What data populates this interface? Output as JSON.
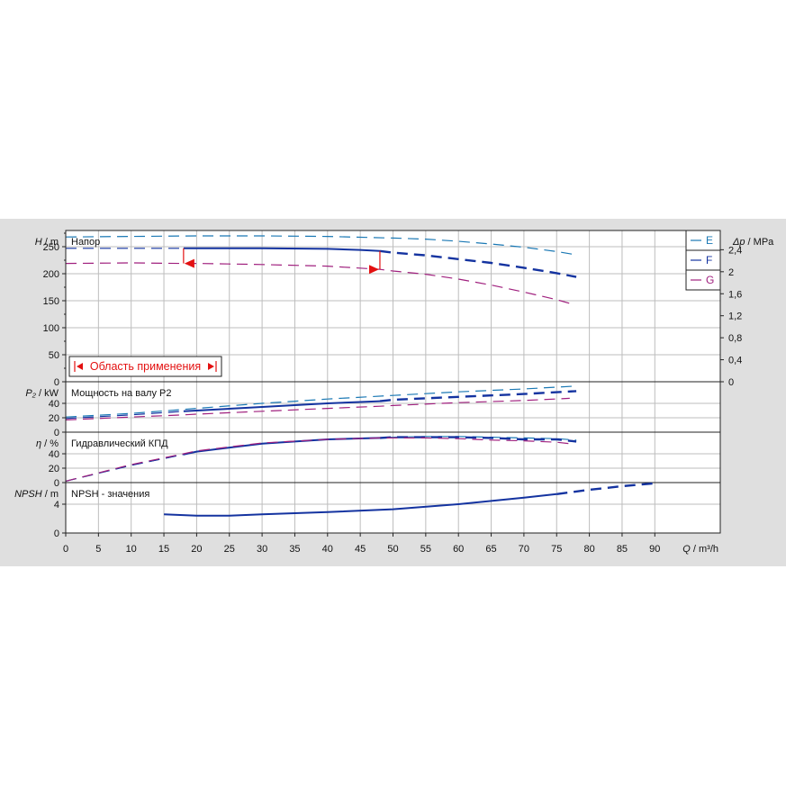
{
  "colors": {
    "E": "#1a78b4",
    "F": "#1433a0",
    "G": "#a0207e",
    "application_marker": "#e31010",
    "grid": "#bdbdbd",
    "panel_bg": "#dfdfdf",
    "plot_bg": "#ffffff"
  },
  "chart_data": {
    "type": "line",
    "x_axis": {
      "label_var": "Q",
      "label_unit": "m³/h",
      "range": [
        0,
        100
      ],
      "ticks": [
        0,
        5,
        10,
        15,
        20,
        25,
        30,
        35,
        40,
        45,
        50,
        55,
        60,
        65,
        70,
        75,
        80,
        85,
        90
      ]
    },
    "panels": [
      {
        "id": "head",
        "title": "Напор",
        "ylabel_var": "H",
        "ylabel_unit": "m",
        "ylim": [
          0,
          280
        ],
        "yticks": [
          0,
          50,
          100,
          150,
          200,
          250
        ],
        "secondary_axis": {
          "label_var": "Δp",
          "label_unit": "MPa",
          "range": [
            0,
            2.75
          ],
          "ticks": [
            0,
            0.4,
            0.8,
            1.2,
            1.6,
            2,
            2.4
          ],
          "tick_labels": [
            "0",
            "0,4",
            "0,8",
            "1,2",
            "1,6",
            "2",
            "2,4"
          ]
        },
        "annotation": "Область применения",
        "application_range": [
          18,
          48
        ],
        "series": [
          {
            "name": "E",
            "style": "dashed",
            "x": [
              0,
              10,
              20,
              30,
              40,
              50,
              55,
              60,
              65,
              70,
              75,
              78
            ],
            "y": [
              268,
              269,
              270,
              270,
              269,
              266,
              264,
              260,
              255,
              249,
              241,
              235
            ]
          },
          {
            "name": "F",
            "style": "duty",
            "x": [
              0,
              10,
              18,
              20,
              30,
              40,
              45,
              48,
              50,
              55,
              60,
              65,
              70,
              75,
              78
            ],
            "y": [
              247,
              247,
              247,
              247,
              247,
              246,
              244,
              242,
              239,
              234,
              227,
              220,
              211,
              201,
              194
            ]
          },
          {
            "name": "G",
            "style": "dashed",
            "x": [
              0,
              10,
              18,
              20,
              30,
              40,
              48,
              50,
              55,
              60,
              65,
              70,
              75,
              77
            ],
            "y": [
              219,
              220,
              219,
              219,
              217,
              214,
              208,
              205,
              199,
              190,
              179,
              166,
              152,
              145
            ]
          }
        ]
      },
      {
        "id": "power",
        "title": "Мощность на валу P2",
        "ylabel_var": "P₂",
        "ylabel_unit": "kW",
        "ylim": [
          0,
          70
        ],
        "yticks": [
          0,
          20,
          40
        ],
        "series": [
          {
            "name": "E",
            "style": "dashed",
            "x": [
              0,
              10,
              20,
              30,
              40,
              50,
              60,
              70,
              78
            ],
            "y": [
              21,
              26,
              33,
              40,
              46,
              51,
              56,
              60,
              64
            ]
          },
          {
            "name": "F",
            "style": "duty",
            "x": [
              0,
              10,
              18,
              20,
              30,
              40,
              48,
              50,
              60,
              70,
              78
            ],
            "y": [
              19,
              24,
              29,
              30,
              35,
              40,
              43,
              45,
              49,
              53,
              57
            ]
          },
          {
            "name": "G",
            "style": "dashed",
            "x": [
              0,
              10,
              18,
              20,
              30,
              40,
              48,
              50,
              60,
              70,
              77
            ],
            "y": [
              17,
              21,
              24,
              25,
              29,
              33,
              36,
              37,
              41,
              44,
              47
            ]
          }
        ]
      },
      {
        "id": "efficiency",
        "title": "Гидравлический КПД",
        "ylabel_var": "η",
        "ylabel_unit": "%",
        "ylim": [
          0,
          70
        ],
        "yticks": [
          0,
          20,
          40
        ],
        "series": [
          {
            "name": "E",
            "style": "dashed",
            "x": [
              0,
              10,
              20,
              30,
              40,
              50,
              55,
              60,
              65,
              70,
              75,
              78
            ],
            "y": [
              2,
              24,
              43,
              54,
              60,
              63,
              64,
              64,
              63,
              62,
              61,
              59
            ]
          },
          {
            "name": "F",
            "style": "duty",
            "x": [
              0,
              10,
              18,
              20,
              30,
              40,
              48,
              50,
              55,
              60,
              65,
              70,
              75,
              78
            ],
            "y": [
              2,
              24,
              39,
              43,
              54,
              60,
              62,
              63,
              63,
              63,
              62,
              60,
              60,
              57
            ]
          },
          {
            "name": "G",
            "style": "dashed",
            "x": [
              0,
              10,
              18,
              20,
              30,
              40,
              48,
              50,
              55,
              60,
              65,
              70,
              75,
              77
            ],
            "y": [
              2,
              25,
              40,
              44,
              55,
              60,
              62,
              62,
              62,
              61,
              59,
              58,
              56,
              54
            ]
          }
        ]
      },
      {
        "id": "npsh",
        "title": "NPSH - значения",
        "ylabel_var": "NPSH",
        "ylabel_unit": "m",
        "ylim": [
          0,
          7
        ],
        "yticks": [
          0,
          4
        ],
        "series": [
          {
            "name": "F",
            "style": "duty_npsh",
            "x": [
              15,
              20,
              25,
              30,
              40,
              50,
              60,
              70,
              75,
              80,
              85,
              90
            ],
            "y": [
              2.6,
              2.4,
              2.4,
              2.6,
              2.9,
              3.3,
              4.0,
              4.9,
              5.4,
              6.0,
              6.5,
              6.9
            ]
          }
        ]
      }
    ],
    "legend": {
      "placement": "top-right",
      "entries": [
        "E",
        "F",
        "G"
      ]
    }
  }
}
